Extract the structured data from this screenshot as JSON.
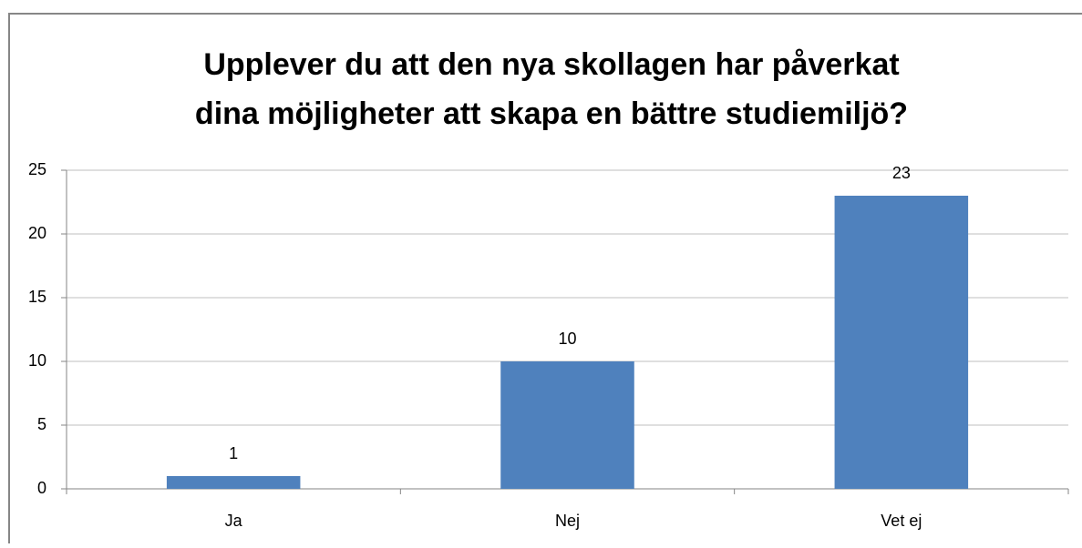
{
  "chart_data": {
    "type": "bar",
    "title": [
      "Upplever du att den nya skollagen har påverkat",
      "dina möjligheter att skapa en bättre studiemiljö?"
    ],
    "categories": [
      "Ja",
      "Nej",
      "Vet ej"
    ],
    "values": [
      1,
      10,
      23
    ],
    "color": "#4f81bd",
    "ylim": [
      0,
      25
    ],
    "yticks": [
      0,
      5,
      10,
      15,
      20,
      25
    ],
    "grid": true
  }
}
